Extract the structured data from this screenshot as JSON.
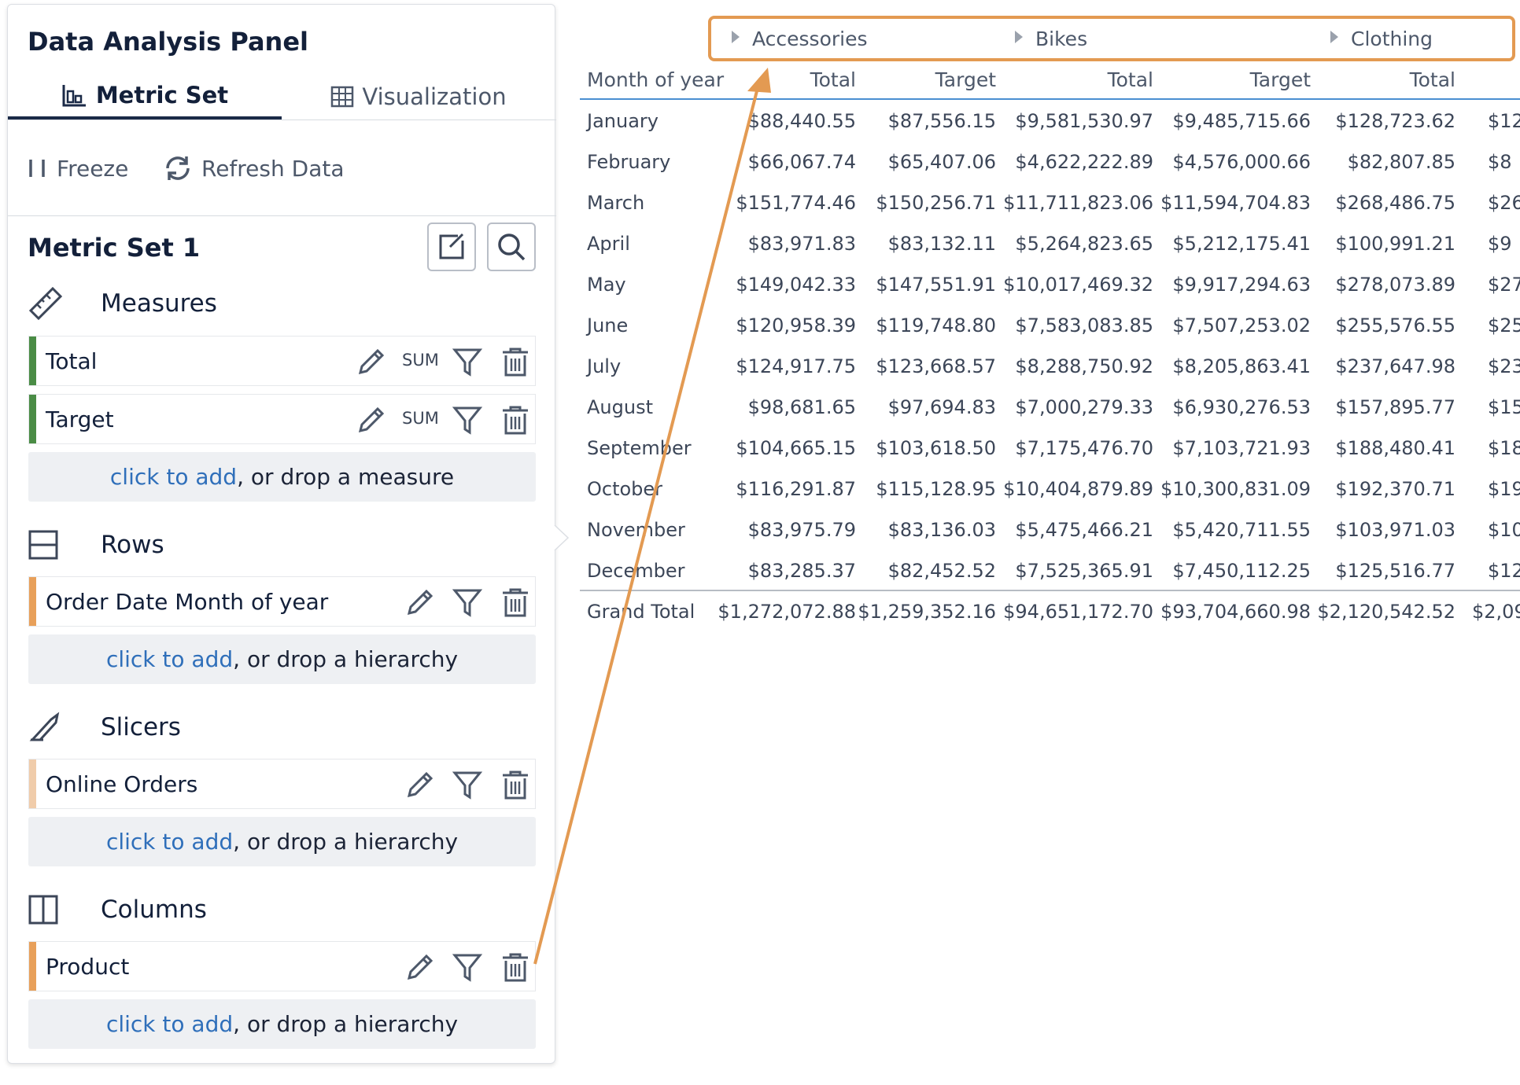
{
  "panel": {
    "title": "Data Analysis Panel",
    "tabs": [
      {
        "label": "Metric Set",
        "active": true
      },
      {
        "label": "Visualization",
        "active": false
      }
    ],
    "toolbar": {
      "freeze_label": "Freeze",
      "refresh_label": "Refresh Data"
    },
    "metric_set_title": "Metric Set 1",
    "sections": {
      "measures": {
        "label": "Measures",
        "items": [
          "Total",
          "Target"
        ],
        "agg": "SUM",
        "adder": {
          "link": "click to add",
          "rest": ", or drop a measure"
        }
      },
      "rows": {
        "label": "Rows",
        "items": [
          "Order Date Month of year"
        ],
        "adder": {
          "link": "click to add",
          "rest": ", or drop a hierarchy"
        }
      },
      "slicers": {
        "label": "Slicers",
        "items": [
          "Online Orders"
        ],
        "adder": {
          "link": "click to add",
          "rest": ", or drop a hierarchy"
        }
      },
      "columns": {
        "label": "Columns",
        "items": [
          "Product"
        ],
        "adder": {
          "link": "click to add",
          "rest": ", or drop a hierarchy"
        }
      }
    },
    "colors": {
      "measure_bar": "#4a8c45",
      "row_bar": "#e8a05a",
      "slicer_bar": "#f0ccaa",
      "column_bar": "#e8a05a",
      "link": "#2f6fba",
      "highlight": "#e39a52"
    }
  },
  "pivot": {
    "column_groups": [
      "Accessories",
      "Bikes",
      "Clothing"
    ],
    "row_header": "Month of year",
    "measure_headers": [
      "Total",
      "Target",
      "Total",
      "Target",
      "Total"
    ],
    "rows": [
      {
        "label": "January",
        "values": [
          "$88,440.55",
          "$87,556.15",
          "$9,581,530.97",
          "$9,485,715.66",
          "$128,723.62",
          "$12"
        ]
      },
      {
        "label": "February",
        "values": [
          "$66,067.74",
          "$65,407.06",
          "$4,622,222.89",
          "$4,576,000.66",
          "$82,807.85",
          "$8"
        ]
      },
      {
        "label": "March",
        "values": [
          "$151,774.46",
          "$150,256.71",
          "$11,711,823.06",
          "$11,594,704.83",
          "$268,486.75",
          "$26"
        ]
      },
      {
        "label": "April",
        "values": [
          "$83,971.83",
          "$83,132.11",
          "$5,264,823.65",
          "$5,212,175.41",
          "$100,991.21",
          "$9"
        ]
      },
      {
        "label": "May",
        "values": [
          "$149,042.33",
          "$147,551.91",
          "$10,017,469.32",
          "$9,917,294.63",
          "$278,073.89",
          "$27"
        ]
      },
      {
        "label": "June",
        "values": [
          "$120,958.39",
          "$119,748.80",
          "$7,583,083.85",
          "$7,507,253.02",
          "$255,576.55",
          "$25"
        ]
      },
      {
        "label": "July",
        "values": [
          "$124,917.75",
          "$123,668.57",
          "$8,288,750.92",
          "$8,205,863.41",
          "$237,647.98",
          "$23"
        ]
      },
      {
        "label": "August",
        "values": [
          "$98,681.65",
          "$97,694.83",
          "$7,000,279.33",
          "$6,930,276.53",
          "$157,895.77",
          "$15"
        ]
      },
      {
        "label": "September",
        "values": [
          "$104,665.15",
          "$103,618.50",
          "$7,175,476.70",
          "$7,103,721.93",
          "$188,480.41",
          "$18"
        ]
      },
      {
        "label": "October",
        "values": [
          "$116,291.87",
          "$115,128.95",
          "$10,404,879.89",
          "$10,300,831.09",
          "$192,370.71",
          "$19"
        ]
      },
      {
        "label": "November",
        "values": [
          "$83,975.79",
          "$83,136.03",
          "$5,475,466.21",
          "$5,420,711.55",
          "$103,971.03",
          "$10"
        ]
      },
      {
        "label": "December",
        "values": [
          "$83,285.37",
          "$82,452.52",
          "$7,525,365.91",
          "$7,450,112.25",
          "$125,516.77",
          "$12"
        ]
      }
    ],
    "grand_total": {
      "label": "Grand Total",
      "values": [
        "$1,272,072.88",
        "$1,259,352.16",
        "$94,651,172.70",
        "$93,704,660.98",
        "$2,120,542.52",
        "$2,09"
      ]
    }
  }
}
